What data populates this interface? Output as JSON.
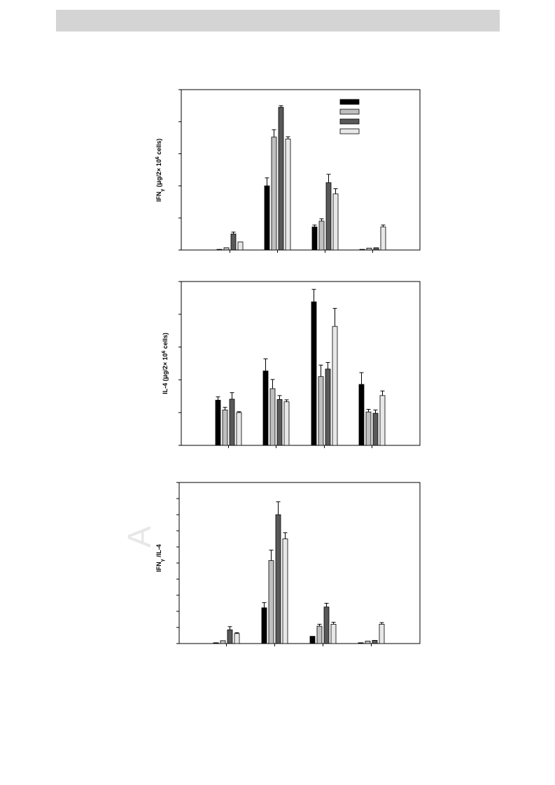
{
  "page": {
    "watermark_text": "A"
  },
  "colors": {
    "s1": "#000000",
    "s2": "#bfbfbf",
    "s3": "#595959",
    "s4": "#e8e8e8"
  },
  "chart_data": [
    {
      "type": "bar",
      "ylabel_parts": [
        "IFN",
        "γ",
        " (",
        "μ",
        "g/2× 10",
        "6",
        " cells)"
      ],
      "categories": [
        "",
        "",
        "",
        ""
      ],
      "yticks": 5,
      "ylim": [
        0,
        5
      ],
      "legend": {
        "placement": "top-right",
        "entries": [
          "",
          "",
          "",
          ""
        ]
      },
      "series": [
        {
          "values": [
            0.02,
            2.0,
            0.72,
            0.02
          ],
          "errors": [
            0.0,
            0.25,
            0.06,
            0.0
          ]
        },
        {
          "values": [
            0.07,
            3.52,
            0.9,
            0.06
          ],
          "errors": [
            0.0,
            0.23,
            0.07,
            0.0
          ]
        },
        {
          "values": [
            0.5,
            4.45,
            2.1,
            0.07
          ],
          "errors": [
            0.06,
            0.05,
            0.26,
            0.0
          ]
        },
        {
          "values": [
            0.25,
            3.46,
            1.75,
            0.72
          ],
          "errors": [
            0.0,
            0.07,
            0.16,
            0.06
          ]
        }
      ]
    },
    {
      "type": "bar",
      "ylabel_parts": [
        "IL-4",
        " (",
        "μ",
        "g/2× 10",
        "6",
        " cells)"
      ],
      "categories": [
        "",
        "",
        "",
        ""
      ],
      "yticks": 5,
      "ylim": [
        0,
        5
      ],
      "series": [
        {
          "values": [
            1.38,
            2.27,
            4.38,
            1.86
          ],
          "errors": [
            0.1,
            0.37,
            0.38,
            0.36
          ]
        },
        {
          "values": [
            1.08,
            1.73,
            2.1,
            1.02
          ],
          "errors": [
            0.08,
            0.28,
            0.35,
            0.08
          ]
        },
        {
          "values": [
            1.41,
            1.4,
            2.33,
            0.98
          ],
          "errors": [
            0.2,
            0.12,
            0.2,
            0.1
          ]
        },
        {
          "values": [
            1.0,
            1.33,
            3.63,
            1.52
          ],
          "errors": [
            0.03,
            0.06,
            0.55,
            0.14
          ]
        }
      ]
    },
    {
      "type": "bar",
      "ylabel_parts": [
        "IFN",
        "γ",
        " /IL-4"
      ],
      "categories": [
        "",
        "",
        "",
        ""
      ],
      "yticks": 10,
      "ylim": [
        0,
        10
      ],
      "series": [
        {
          "values": [
            0.05,
            2.22,
            0.45,
            0.05
          ],
          "errors": [
            0.0,
            0.32,
            0.0,
            0.0
          ]
        },
        {
          "values": [
            0.18,
            5.15,
            1.08,
            0.15
          ],
          "errors": [
            0.0,
            0.65,
            0.12,
            0.0
          ]
        },
        {
          "values": [
            0.85,
            8.0,
            2.27,
            0.2
          ],
          "errors": [
            0.2,
            0.8,
            0.23,
            0.0
          ]
        },
        {
          "values": [
            0.62,
            6.5,
            1.2,
            1.2
          ],
          "errors": [
            0.05,
            0.38,
            0.12,
            0.1
          ]
        }
      ]
    }
  ]
}
